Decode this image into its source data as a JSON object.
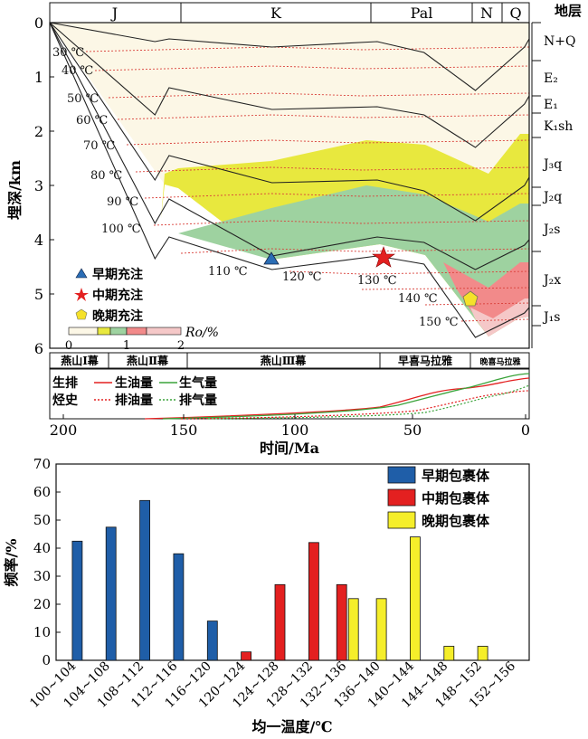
{
  "top_chart": {
    "periods": [
      "J",
      "K",
      "Pal",
      "N",
      "Q"
    ],
    "layers_header": "地层",
    "strata": [
      "N+Q",
      "E₂",
      "E₁",
      "K₁sh",
      "J₃q",
      "J₂q",
      "J₂s",
      "J₂x",
      "J₁s"
    ],
    "depth_ticks": [
      "0",
      "1",
      "2",
      "3",
      "4",
      "5",
      "6"
    ],
    "ylabel": "埋深/km",
    "isotherms": [
      "30 ℃",
      "40 ℃",
      "50 ℃",
      "60 ℃",
      "70 ℃",
      "80 ℃",
      "90 ℃",
      "100 ℃",
      "110 ℃",
      "120 ℃",
      "130 ℃",
      "140 ℃",
      "150 ℃"
    ],
    "legend": {
      "early": "早期充注",
      "middle": "中期充注",
      "late": "晚期充注",
      "ro_label": "Ro/%",
      "ro_ticks": [
        "0",
        "1",
        "2"
      ]
    },
    "charge_points": [
      {
        "stage": "early",
        "age_ma": 112,
        "depth_km": 4.2
      },
      {
        "stage": "middle",
        "age_ma": 63,
        "depth_km": 4.25
      },
      {
        "stage": "late",
        "age_ma": 22,
        "depth_km": 5.05
      }
    ],
    "tectonic": [
      "燕山Ⅰ幕",
      "燕山Ⅱ幕",
      "燕山Ⅲ幕",
      "早喜马拉雅",
      "晚喜马拉雅"
    ],
    "hydrocarbon": {
      "title_line1": "生排",
      "title_line2": "烃史",
      "oil_gen": "生油量",
      "gas_gen": "生气量",
      "oil_exp": "排油量",
      "gas_exp": "排气量"
    },
    "time_ticks": [
      "200",
      "150",
      "100",
      "50",
      "0"
    ],
    "xlabel": "时间/Ma"
  },
  "chart_data": [
    {
      "type": "area",
      "title": "",
      "xlabel": "时间/Ma",
      "ylabel": "埋深/km",
      "xlim": [
        205,
        0
      ],
      "ylim": [
        0,
        6
      ],
      "burial_paths": [
        {
          "x": [
            205,
            160,
            154,
            110,
            65,
            45,
            23,
            2,
            0
          ],
          "y": [
            0,
            0.35,
            0.3,
            0.45,
            0.35,
            0.55,
            1.25,
            0.45,
            0.3
          ]
        },
        {
          "x": [
            205,
            160,
            154,
            110,
            65,
            45,
            23,
            2,
            0
          ],
          "y": [
            0,
            1.7,
            1.2,
            1.6,
            1.55,
            1.7,
            2.3,
            1.5,
            1.35
          ]
        },
        {
          "x": [
            205,
            160,
            154,
            110,
            65,
            45,
            23,
            2,
            0
          ],
          "y": [
            0,
            2.9,
            2.45,
            2.95,
            2.9,
            3.1,
            3.65,
            3.0,
            2.85
          ]
        },
        {
          "x": [
            205,
            160,
            154,
            110,
            65,
            45,
            23,
            2,
            0
          ],
          "y": [
            0,
            3.7,
            3.25,
            4.3,
            3.95,
            4.05,
            4.55,
            4.1,
            4.0
          ]
        },
        {
          "x": [
            205,
            160,
            154,
            110,
            65,
            45,
            23,
            2,
            0
          ],
          "y": [
            0,
            4.35,
            3.95,
            4.55,
            4.3,
            4.45,
            5.8,
            5.35,
            5.25
          ]
        }
      ]
    },
    {
      "type": "bar",
      "title": "",
      "xlabel": "均一温度/℃",
      "ylabel": "频率/%",
      "ylim": [
        0,
        70
      ],
      "categories": [
        "100~104",
        "104~108",
        "108~112",
        "112~116",
        "116~120",
        "120~124",
        "124~128",
        "128~132",
        "132~136",
        "136~140",
        "140~144",
        "144~148",
        "148~152",
        "152~156"
      ],
      "series": [
        {
          "name": "早期包裹体",
          "color": "#1f5ea8",
          "values": [
            42.5,
            47.5,
            57,
            38,
            14,
            0,
            0,
            0,
            0,
            0,
            0,
            0,
            0,
            0
          ]
        },
        {
          "name": "中期包裹体",
          "color": "#e32020",
          "values": [
            0,
            0,
            0,
            0,
            0,
            3,
            27,
            42,
            27,
            0,
            0,
            0,
            0,
            0
          ]
        },
        {
          "name": "晚期包裹体",
          "color": "#f5ee2a",
          "values": [
            0,
            0,
            0,
            0,
            0,
            0,
            0,
            0,
            22,
            22,
            44,
            5,
            5,
            0
          ]
        }
      ],
      "yticks": [
        "0",
        "10",
        "20",
        "30",
        "40",
        "50",
        "60",
        "70"
      ]
    }
  ]
}
